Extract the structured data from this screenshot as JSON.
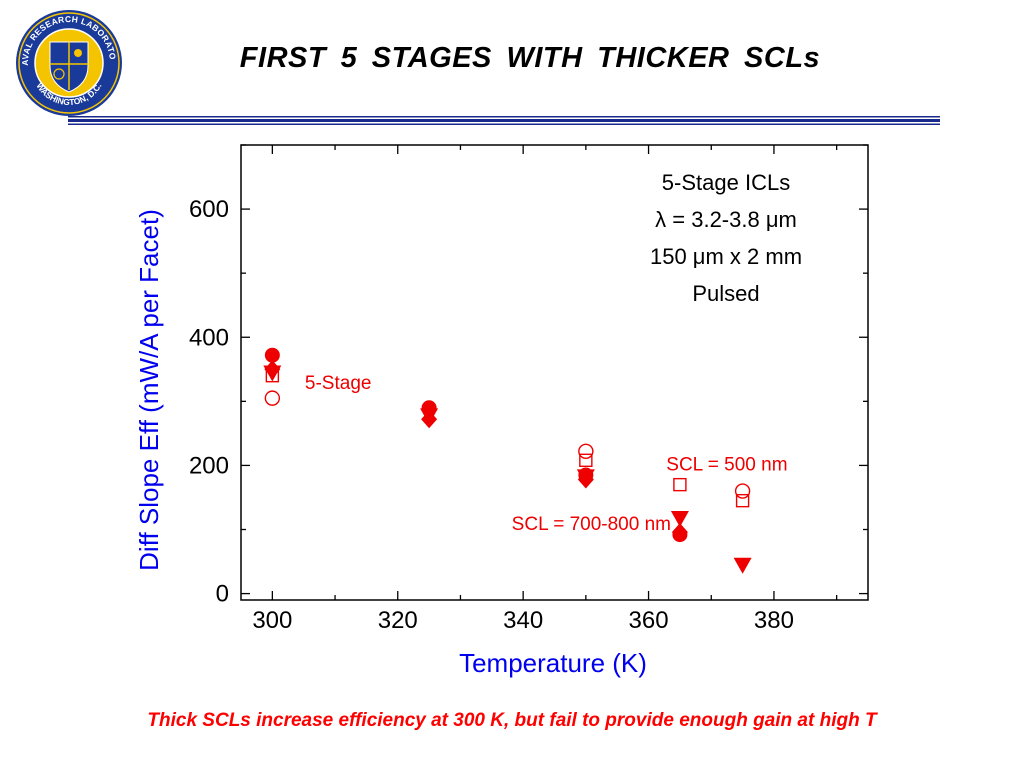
{
  "logo": {
    "top_text": "NAVAL RESEARCH LABORATORY",
    "bottom_text": "WASHINGTON, D.C.",
    "colors": {
      "ring": "#1a3a9a",
      "gold": "#f5c400"
    }
  },
  "title": "FIRST  5  STAGES  WITH  THICKER  SCLs",
  "footer": "Thick SCLs increase efficiency at 300 K, but fail to provide enough gain at high T",
  "chart_data": {
    "type": "scatter",
    "xlabel": "Temperature (K)",
    "ylabel": "Diff Slope Eff (mW/A per Facet)",
    "xlim": [
      295,
      395
    ],
    "ylim": [
      -10,
      700
    ],
    "xticks": [
      300,
      320,
      340,
      360,
      380
    ],
    "yticks": [
      0,
      200,
      400,
      600
    ],
    "inset_text": [
      "5-Stage ICLs",
      "λ = 3.2-3.8 μm",
      "150 μm x 2 mm",
      "Pulsed"
    ],
    "annotations": [
      {
        "text": "5-Stage",
        "x": 310.5,
        "y": 330
      },
      {
        "text": "SCL = 500 nm",
        "x": 372.5,
        "y": 203
      },
      {
        "text": "SCL = 700-800 nm",
        "x": 350.5,
        "y": 110
      }
    ],
    "series": [
      {
        "marker": "circle-open",
        "points": [
          [
            300,
            305
          ],
          [
            350,
            222
          ],
          [
            375,
            160
          ]
        ]
      },
      {
        "marker": "square-open",
        "points": [
          [
            300,
            340
          ],
          [
            350,
            208
          ],
          [
            365,
            170
          ],
          [
            375,
            145
          ]
        ]
      },
      {
        "marker": "circle-filled",
        "points": [
          [
            300,
            372
          ],
          [
            325,
            290
          ],
          [
            350,
            185
          ],
          [
            365,
            92
          ]
        ]
      },
      {
        "marker": "diamond-filled",
        "points": [
          [
            300,
            350
          ],
          [
            325,
            272
          ],
          [
            350,
            178
          ],
          [
            365,
            96
          ]
        ]
      },
      {
        "marker": "triangle-down-filled",
        "points": [
          [
            300,
            345
          ],
          [
            325,
            278
          ],
          [
            350,
            183
          ],
          [
            365,
            118
          ],
          [
            375,
            45
          ]
        ]
      }
    ],
    "color": "#ee0000"
  }
}
